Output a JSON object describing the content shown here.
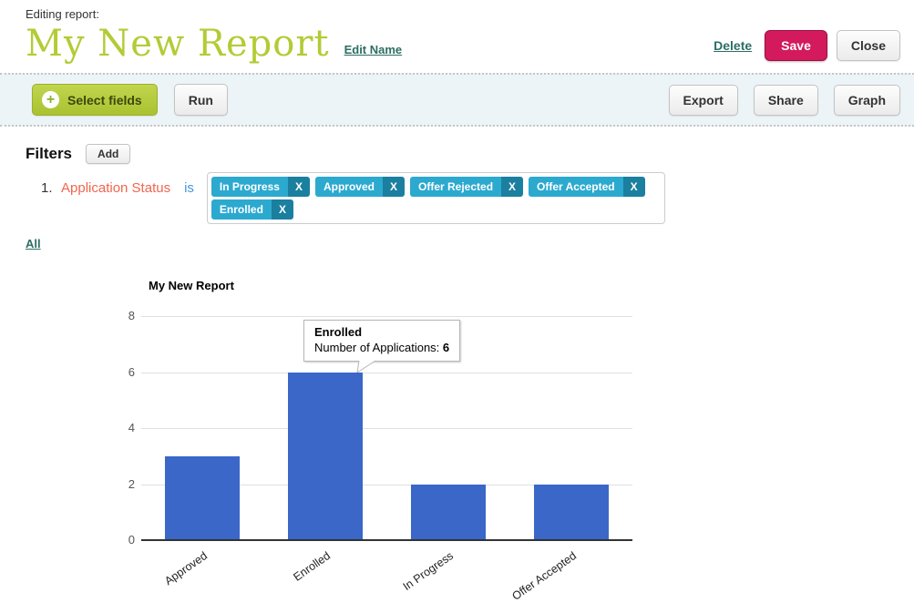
{
  "header": {
    "kicker": "Editing report:",
    "title": "My New Report",
    "edit_name": "Edit Name",
    "delete": "Delete",
    "save": "Save",
    "close": "Close"
  },
  "toolbar": {
    "select_fields": "Select fields",
    "plus_icon": "+",
    "run": "Run",
    "export": "Export",
    "share": "Share",
    "graph": "Graph"
  },
  "filters": {
    "heading": "Filters",
    "add": "Add",
    "all": "All",
    "row": {
      "index": "1.",
      "field": "Application Status",
      "operator": "is",
      "values": [
        "In Progress",
        "Approved",
        "Offer Rejected",
        "Offer Accepted",
        "Enrolled"
      ],
      "remove": "X"
    }
  },
  "chart_data": {
    "type": "bar",
    "title": "My New Report",
    "series_name": "Number of Applications",
    "categories": [
      "Approved",
      "Enrolled",
      "In Progress",
      "Offer Accepted"
    ],
    "values": [
      3,
      6,
      2,
      2
    ],
    "xlabel": "",
    "ylabel": "",
    "ylim": [
      0,
      8
    ],
    "yticks": [
      0,
      2,
      4,
      6,
      8
    ],
    "grid": true,
    "legend": "none",
    "tooltip": {
      "category": "Enrolled",
      "label": "Number of Applications:",
      "value": "6"
    }
  },
  "colors": {
    "title_green": "#b3cb35",
    "link_teal": "#2d6e64",
    "save_bg": "#d31a5c",
    "select_green": "#aac231",
    "toolbar_bg": "#ecf4f7",
    "field_orange": "#f0664e",
    "op_blue": "#4596dd",
    "tag_blue": "#2ca9cf",
    "tag_x_blue": "#1b7f9f",
    "bar_blue": "#3a67c8"
  }
}
